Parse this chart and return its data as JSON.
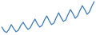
{
  "line_color": "#3a7abf",
  "line_width": 0.9,
  "background_color": "#ffffff",
  "values": [
    32000,
    27000,
    25000,
    29000,
    35000,
    30000,
    26000,
    28000,
    34000,
    38000,
    33000,
    29000,
    31000,
    37000,
    42000,
    36000,
    32000,
    34000,
    41000,
    46000,
    40000,
    35000,
    37000,
    44000,
    50000,
    44000,
    39000,
    41000,
    48000,
    54000,
    49000,
    43000,
    46000,
    53000,
    59000,
    54000,
    48000,
    51000,
    58000,
    64000
  ]
}
